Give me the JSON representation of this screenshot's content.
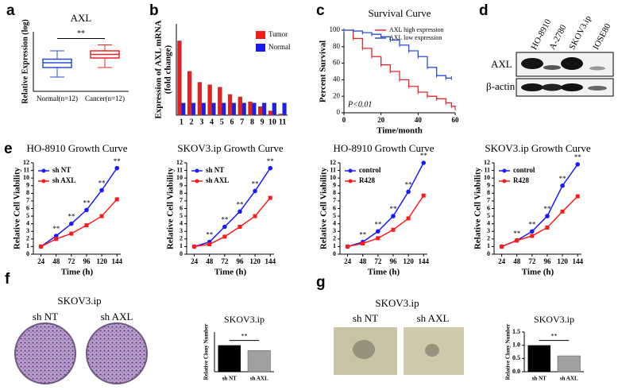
{
  "panel_labels": [
    "a",
    "b",
    "c",
    "d",
    "e",
    "f",
    "g"
  ],
  "chart_data": [
    {
      "type": "box",
      "title": "AXL",
      "y_label": "Relative Expression (log)",
      "categories": [
        "Normal(n=12)",
        "Cancer(n=12)"
      ],
      "colors": [
        "#2a4fd6",
        "#e8262a"
      ],
      "boxes": [
        {
          "min": 1.6,
          "q1": 2.0,
          "median": 2.2,
          "q3": 2.35,
          "max": 2.7
        },
        {
          "min": 2.0,
          "q1": 2.4,
          "median": 2.55,
          "q3": 2.7,
          "max": 2.95
        }
      ],
      "ylim": [
        1,
        3.5
      ],
      "annotation": "**"
    },
    {
      "type": "bar",
      "y_label": [
        "Expression of AXL mRNA",
        "(fold change)"
      ],
      "categories": [
        "1",
        "2",
        "3",
        "4",
        "5",
        "6",
        "7",
        "8",
        "9",
        "10",
        "11"
      ],
      "series": [
        {
          "name": "Tumor",
          "color": "#f01c1c",
          "values": [
            6.1,
            3.6,
            2.7,
            2.5,
            2.3,
            1.7,
            1.5,
            1.1,
            0.7,
            0.35,
            0.1
          ]
        },
        {
          "name": "Normal",
          "color": "#1c1cf0",
          "values": [
            1,
            1,
            1,
            1,
            1,
            1,
            1,
            1,
            1,
            1,
            1
          ]
        }
      ],
      "ylim": [
        0,
        7.5
      ]
    },
    {
      "type": "line",
      "step": true,
      "title": "Survival Curve",
      "x_label": "Time/month",
      "y_label": "Percent Survival",
      "series": [
        {
          "name": "AXL high expression",
          "color": "#e8262a",
          "x": [
            0,
            5,
            10,
            15,
            20,
            25,
            30,
            35,
            40,
            45,
            50,
            55,
            58,
            60
          ],
          "values": [
            100,
            90,
            78,
            68,
            58,
            50,
            40,
            32,
            25,
            20,
            17,
            12,
            8,
            5
          ]
        },
        {
          "name": "AXL low expression",
          "color": "#2a4fd6",
          "x": [
            0,
            5,
            10,
            15,
            20,
            25,
            30,
            35,
            40,
            45,
            50,
            55,
            58
          ],
          "values": [
            100,
            99,
            97,
            95,
            92,
            88,
            82,
            75,
            68,
            55,
            45,
            42,
            42
          ]
        }
      ],
      "xlim": [
        0,
        60
      ],
      "xticks": [
        0,
        20,
        40,
        60
      ],
      "ylim": [
        0,
        100
      ],
      "yticks": [
        0,
        20,
        40,
        60,
        80,
        100
      ],
      "annotation": "P<0.01"
    },
    {
      "type": "line",
      "title": "HO-8910 Growth Curve",
      "x_label": "Time (h)",
      "y_label": "Relative Cell Viability",
      "x": [
        24,
        48,
        72,
        96,
        120,
        144
      ],
      "series": [
        {
          "name": "sh NT",
          "color": "#1a1aff",
          "values": [
            1,
            2.4,
            4,
            5.8,
            8.4,
            11.3
          ]
        },
        {
          "name": "sh AXL",
          "color": "#ff1a1a",
          "values": [
            1,
            2,
            2.7,
            3.8,
            5,
            7.2
          ]
        }
      ],
      "xlim": [
        12,
        150
      ],
      "xticks": [
        24,
        48,
        72,
        96,
        120,
        144
      ],
      "ylim": [
        0,
        12
      ],
      "yticks": [
        0,
        1,
        2,
        3,
        4,
        5,
        6,
        7,
        8,
        9,
        10,
        11,
        12
      ],
      "annotation": "**"
    },
    {
      "type": "line",
      "title": "SKOV3.ip Growth Curve",
      "x_label": "Time (h)",
      "y_label": "Relative Cell Viability",
      "x": [
        24,
        48,
        72,
        96,
        120,
        144
      ],
      "series": [
        {
          "name": "sh NT",
          "color": "#1a1aff",
          "values": [
            1,
            1.6,
            3.6,
            5.6,
            8.3,
            11.3
          ]
        },
        {
          "name": "sh AXL",
          "color": "#ff1a1a",
          "values": [
            1,
            1.3,
            2.3,
            3.6,
            5,
            7.4
          ]
        }
      ],
      "xlim": [
        12,
        150
      ],
      "xticks": [
        24,
        48,
        72,
        96,
        120,
        144
      ],
      "ylim": [
        0,
        12
      ],
      "yticks": [
        0,
        1,
        2,
        3,
        4,
        5,
        6,
        7,
        8,
        9,
        10,
        11,
        12
      ],
      "annotation": "**"
    },
    {
      "type": "line",
      "title": "HO-8910 Growth Curve",
      "x_label": "Time (h)",
      "y_label": "Relative Cell Viability",
      "x": [
        24,
        48,
        72,
        96,
        120,
        144
      ],
      "series": [
        {
          "name": "control",
          "color": "#1a1aff",
          "values": [
            1,
            1.6,
            3,
            5,
            8.2,
            12
          ]
        },
        {
          "name": "R428",
          "color": "#ff1a1a",
          "values": [
            1,
            1.4,
            2.1,
            3.2,
            4.7,
            7.7
          ]
        }
      ],
      "xlim": [
        12,
        150
      ],
      "xticks": [
        24,
        48,
        72,
        96,
        120,
        144
      ],
      "ylim": [
        0,
        12
      ],
      "yticks": [
        0,
        1,
        2,
        3,
        4,
        5,
        6,
        7,
        8,
        9,
        10,
        11,
        12
      ],
      "annotation": "**"
    },
    {
      "type": "line",
      "title": "SKOV3.ip Growth Curve",
      "x_label": "Time (h)",
      "y_label": "Relative Cell Viability",
      "x": [
        24,
        48,
        72,
        96,
        120,
        144
      ],
      "series": [
        {
          "name": "control",
          "color": "#1a1aff",
          "values": [
            1,
            1.8,
            3,
            5,
            9,
            11.8
          ]
        },
        {
          "name": "R428",
          "color": "#ff1a1a",
          "values": [
            1,
            1.8,
            2.4,
            3.5,
            5.6,
            7.6
          ]
        }
      ],
      "xlim": [
        12,
        150
      ],
      "xticks": [
        24,
        48,
        72,
        96,
        120,
        144
      ],
      "ylim": [
        0,
        12
      ],
      "yticks": [
        0,
        1,
        2,
        3,
        4,
        5,
        6,
        7,
        8,
        9,
        10,
        11,
        12
      ],
      "annotation": "**"
    },
    {
      "type": "bar",
      "title": "SKOV3.ip",
      "y_label": "Relative Clony Number",
      "categories": [
        "sh NT",
        "sh AXL"
      ],
      "values": [
        1.0,
        0.8
      ],
      "colors": [
        "#000000",
        "#a0a0a0"
      ],
      "ylim": [
        0,
        1.5
      ],
      "annotation": "**"
    },
    {
      "type": "bar",
      "title": "SKOV3.ip",
      "y_label": "Relative Clony Number",
      "categories": [
        "sh NT",
        "sh AXL"
      ],
      "values": [
        1.0,
        0.6
      ],
      "colors": [
        "#000000",
        "#a0a0a0"
      ],
      "ylim": [
        0,
        1.5
      ],
      "yticks": [
        {
          "value": 0,
          "label": "0.0"
        },
        {
          "value": 0.5,
          "label": "0.5"
        },
        {
          "value": 1,
          "label": "1.0"
        },
        {
          "value": 1.5,
          "label": "1.5"
        }
      ],
      "annotation": "**"
    }
  ],
  "blot": {
    "lanes": [
      "HO-8910",
      "A-2780",
      "SKOV3.ip",
      "IOSE80"
    ],
    "rows": [
      "AXL",
      "β-actin"
    ]
  },
  "colony": {
    "title": "SKOV3.ip",
    "groups": [
      "sh NT",
      "sh AXL"
    ]
  },
  "soft_agar": {
    "title": "SKOV3.ip",
    "groups": [
      "sh NT",
      "sh AXL"
    ]
  }
}
